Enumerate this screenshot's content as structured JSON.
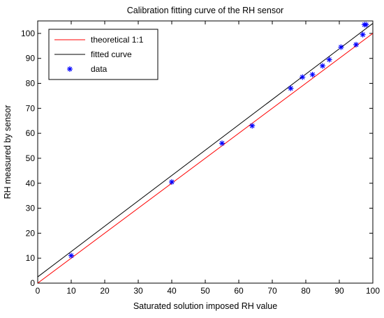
{
  "chart_data": {
    "type": "line",
    "title": "Calibration fitting curve of the RH sensor",
    "xlabel": "Saturated solution imposed RH value",
    "ylabel": "RH measured by sensor",
    "xlim": [
      0,
      100
    ],
    "ylim": [
      0,
      105
    ],
    "x_ticks": [
      0,
      10,
      20,
      30,
      40,
      50,
      60,
      70,
      80,
      90,
      100
    ],
    "y_ticks": [
      0,
      10,
      20,
      30,
      40,
      50,
      60,
      70,
      80,
      90,
      100
    ],
    "grid": false,
    "legend_position": "top-left",
    "series": [
      {
        "name": "theoretical 1:1",
        "kind": "line",
        "color": "#ff0000",
        "x": [
          0,
          100
        ],
        "y": [
          0,
          100
        ]
      },
      {
        "name": "fitted curve",
        "kind": "line",
        "color": "#000000",
        "x": [
          0,
          100
        ],
        "y": [
          2.5,
          104
        ]
      },
      {
        "name": "data",
        "kind": "scatter",
        "marker": "asterisk",
        "color": "#0000ff",
        "x": [
          10,
          40,
          55,
          64,
          75.5,
          79,
          82,
          85,
          87,
          90.5,
          95,
          97,
          97.5,
          98
        ],
        "y": [
          11,
          40.5,
          56,
          63,
          78,
          82.5,
          83.5,
          87,
          89.5,
          94.5,
          95.5,
          99.5,
          103.5,
          103.5
        ]
      }
    ]
  }
}
